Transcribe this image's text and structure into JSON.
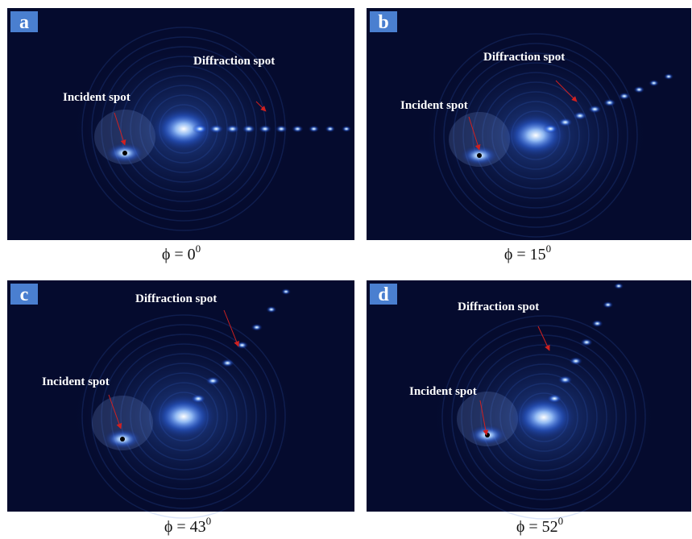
{
  "panels": [
    {
      "letter": "a",
      "diffraction_label": "Diffraction spot",
      "incident_label": "Incident spot",
      "caption": "ϕ = 0",
      "caption_sup": "0"
    },
    {
      "letter": "b",
      "diffraction_label": "Diffraction spot",
      "incident_label": "Incident spot",
      "caption": "ϕ = 15",
      "caption_sup": "0"
    },
    {
      "letter": "c",
      "diffraction_label": "Diffraction spot",
      "incident_label": "Incident spot",
      "caption": "ϕ = 43",
      "caption_sup": "0"
    },
    {
      "letter": "d",
      "diffraction_label": "Diffraction spot",
      "incident_label": "Incident spot",
      "caption": "ϕ = 52",
      "caption_sup": "0"
    }
  ]
}
